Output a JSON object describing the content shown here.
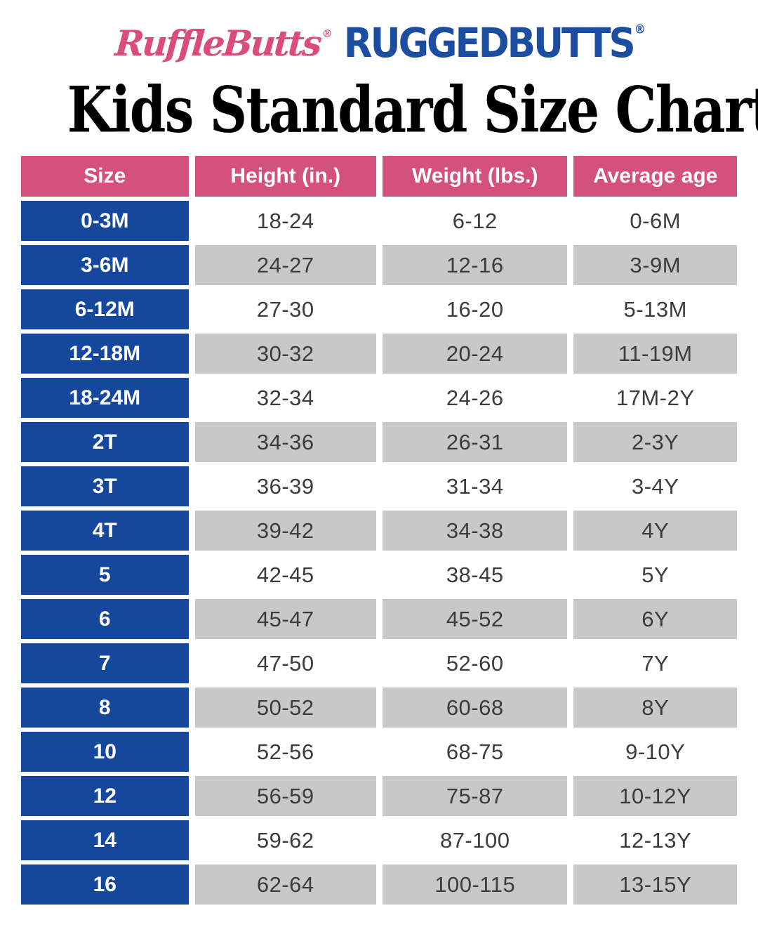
{
  "logos": {
    "rufflebutts": "RuffleButts",
    "ruggedbutts": "RUGGEDBUTTS",
    "registered_mark": "®"
  },
  "title": "Kids Standard Size Chart",
  "colors": {
    "pink": "#D4517D",
    "blue": "#15489C",
    "gray_row": "#C8C8C8",
    "logo_pink": "#DA4C7E",
    "logo_blue": "#1B4DA0"
  },
  "chart_data": {
    "type": "table",
    "title": "Kids Standard Size Chart",
    "columns": [
      "Size",
      "Height (in.)",
      "Weight (lbs.)",
      "Average age"
    ],
    "rows": [
      [
        "0-3M",
        "18-24",
        "6-12",
        "0-6M"
      ],
      [
        "3-6M",
        "24-27",
        "12-16",
        "3-9M"
      ],
      [
        "6-12M",
        "27-30",
        "16-20",
        "5-13M"
      ],
      [
        "12-18M",
        "30-32",
        "20-24",
        "11-19M"
      ],
      [
        "18-24M",
        "32-34",
        "24-26",
        "17M-2Y"
      ],
      [
        "2T",
        "34-36",
        "26-31",
        "2-3Y"
      ],
      [
        "3T",
        "36-39",
        "31-34",
        "3-4Y"
      ],
      [
        "4T",
        "39-42",
        "34-38",
        "4Y"
      ],
      [
        "5",
        "42-45",
        "38-45",
        "5Y"
      ],
      [
        "6",
        "45-47",
        "45-52",
        "6Y"
      ],
      [
        "7",
        "47-50",
        "52-60",
        "7Y"
      ],
      [
        "8",
        "50-52",
        "60-68",
        "8Y"
      ],
      [
        "10",
        "52-56",
        "68-75",
        "9-10Y"
      ],
      [
        "12",
        "56-59",
        "75-87",
        "10-12Y"
      ],
      [
        "14",
        "59-62",
        "87-100",
        "12-13Y"
      ],
      [
        "16",
        "62-64",
        "100-115",
        "13-15Y"
      ]
    ]
  },
  "table": {
    "headers": [
      "Size",
      "Height (in.)",
      "Weight (lbs.)",
      "Average age"
    ],
    "rows": [
      {
        "size": "0-3M",
        "height": "18-24",
        "weight": "6-12",
        "age": "0-6M"
      },
      {
        "size": "3-6M",
        "height": "24-27",
        "weight": "12-16",
        "age": "3-9M"
      },
      {
        "size": "6-12M",
        "height": "27-30",
        "weight": "16-20",
        "age": "5-13M"
      },
      {
        "size": "12-18M",
        "height": "30-32",
        "weight": "20-24",
        "age": "11-19M"
      },
      {
        "size": "18-24M",
        "height": "32-34",
        "weight": "24-26",
        "age": "17M-2Y"
      },
      {
        "size": "2T",
        "height": "34-36",
        "weight": "26-31",
        "age": "2-3Y"
      },
      {
        "size": "3T",
        "height": "36-39",
        "weight": "31-34",
        "age": "3-4Y"
      },
      {
        "size": "4T",
        "height": "39-42",
        "weight": "34-38",
        "age": "4Y"
      },
      {
        "size": "5",
        "height": "42-45",
        "weight": "38-45",
        "age": "5Y"
      },
      {
        "size": "6",
        "height": "45-47",
        "weight": "45-52",
        "age": "6Y"
      },
      {
        "size": "7",
        "height": "47-50",
        "weight": "52-60",
        "age": "7Y"
      },
      {
        "size": "8",
        "height": "50-52",
        "weight": "60-68",
        "age": "8Y"
      },
      {
        "size": "10",
        "height": "52-56",
        "weight": "68-75",
        "age": "9-10Y"
      },
      {
        "size": "12",
        "height": "56-59",
        "weight": "75-87",
        "age": "10-12Y"
      },
      {
        "size": "14",
        "height": "59-62",
        "weight": "87-100",
        "age": "12-13Y"
      },
      {
        "size": "16",
        "height": "62-64",
        "weight": "100-115",
        "age": "13-15Y"
      }
    ]
  }
}
